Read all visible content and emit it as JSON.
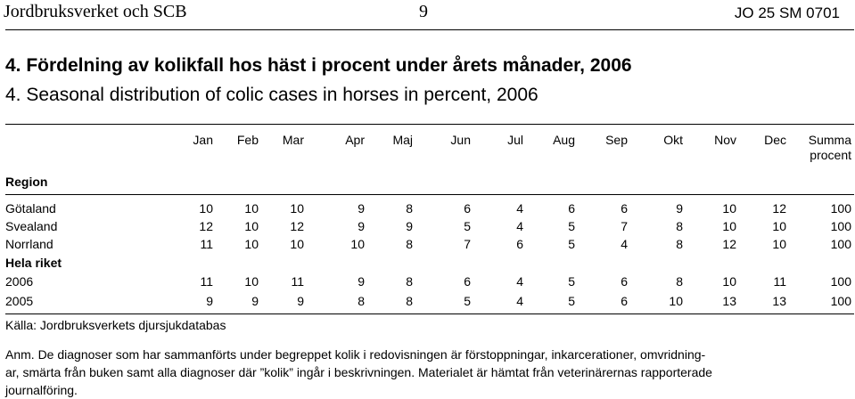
{
  "header": {
    "left": "Jordbruksverket och SCB",
    "page_number": "9",
    "right": "JO 25 SM 0701"
  },
  "title": {
    "swedish": "4. Fördelning av kolikfall hos häst i procent under årets månader, 2006",
    "english": "4. Seasonal distribution of colic cases in horses in percent, 2006"
  },
  "table": {
    "region_header": "Region",
    "columns": [
      "Jan",
      "Feb",
      "Mar",
      "Apr",
      "Maj",
      "Jun",
      "Jul",
      "Aug",
      "Sep",
      "Okt",
      "Nov",
      "Dec"
    ],
    "sum_header": [
      "Summa",
      "procent"
    ],
    "rows": [
      {
        "label": "Götaland",
        "values": [
          "10",
          "10",
          "10",
          "9",
          "8",
          "6",
          "4",
          "6",
          "6",
          "9",
          "10",
          "12",
          "100"
        ]
      },
      {
        "label": "Svealand",
        "values": [
          "12",
          "10",
          "12",
          "9",
          "9",
          "5",
          "4",
          "5",
          "7",
          "8",
          "10",
          "10",
          "100"
        ]
      },
      {
        "label": "Norrland",
        "values": [
          "11",
          "10",
          "10",
          "10",
          "8",
          "7",
          "6",
          "5",
          "4",
          "8",
          "12",
          "10",
          "100"
        ]
      }
    ],
    "group_label": "Hela riket",
    "group_rows": [
      {
        "label": "2006",
        "values": [
          "11",
          "10",
          "11",
          "9",
          "8",
          "6",
          "4",
          "5",
          "6",
          "8",
          "10",
          "11",
          "100"
        ]
      },
      {
        "label": "2005",
        "values": [
          "9",
          "9",
          "9",
          "8",
          "8",
          "5",
          "4",
          "5",
          "6",
          "10",
          "13",
          "13",
          "100"
        ]
      }
    ],
    "source": "Källa: Jordbruksverkets djursjukdatabas"
  },
  "note": {
    "line1": "Anm. De diagnoser som har sammanförts under begreppet kolik i redovisningen är förstoppningar, inkarcerationer, omvridning-",
    "line2": "ar, smärta från buken samt alla diagnoser där ”kolik” ingår i beskrivningen. Materialet är hämtat från veterinärernas rapporterade",
    "line3": "journalföring."
  }
}
